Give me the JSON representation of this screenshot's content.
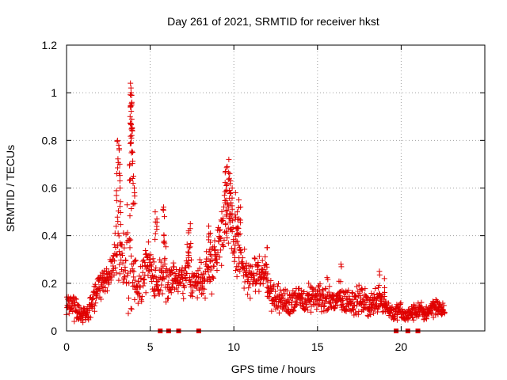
{
  "chart_data": {
    "type": "scatter",
    "title": "Day 261 of 2021, SRMTID for receiver hkst",
    "xlabel": "GPS time / hours",
    "ylabel": "SRMTID / TECUs",
    "xlim": [
      0,
      25
    ],
    "ylim": [
      0,
      1.2
    ],
    "x_ticks": [
      0,
      5,
      10,
      15,
      20
    ],
    "x_tick_labels": [
      "0",
      "5",
      "10",
      "15",
      "20"
    ],
    "y_ticks": [
      0,
      0.2,
      0.4,
      0.6,
      0.8,
      1,
      1.2
    ],
    "y_tick_labels": [
      "0",
      "0.2",
      "0.4",
      "0.6",
      "0.8",
      "1",
      "1.2"
    ],
    "grid": true,
    "marker": "+",
    "color": "#e00000",
    "series_name": "SRMTID",
    "profile": [
      [
        0.0,
        0.12,
        0.04
      ],
      [
        0.3,
        0.11,
        0.04
      ],
      [
        0.6,
        0.1,
        0.05
      ],
      [
        0.8,
        0.07,
        0.03
      ],
      [
        1.0,
        0.06,
        0.03
      ],
      [
        1.3,
        0.08,
        0.04
      ],
      [
        1.6,
        0.12,
        0.05
      ],
      [
        1.9,
        0.19,
        0.04
      ],
      [
        2.2,
        0.2,
        0.05
      ],
      [
        2.5,
        0.24,
        0.06
      ],
      [
        2.8,
        0.27,
        0.07
      ],
      [
        3.0,
        0.35,
        0.2
      ],
      [
        3.2,
        0.3,
        0.15
      ],
      [
        3.5,
        0.28,
        0.1
      ],
      [
        3.8,
        0.35,
        0.3
      ],
      [
        4.0,
        0.22,
        0.1
      ],
      [
        4.3,
        0.17,
        0.05
      ],
      [
        4.6,
        0.25,
        0.1
      ],
      [
        4.9,
        0.32,
        0.08
      ],
      [
        5.2,
        0.22,
        0.08
      ],
      [
        5.5,
        0.18,
        0.05
      ],
      [
        5.8,
        0.3,
        0.12
      ],
      [
        6.1,
        0.2,
        0.06
      ],
      [
        6.4,
        0.23,
        0.06
      ],
      [
        6.7,
        0.2,
        0.05
      ],
      [
        7.0,
        0.22,
        0.06
      ],
      [
        7.3,
        0.27,
        0.1
      ],
      [
        7.6,
        0.2,
        0.06
      ],
      [
        7.9,
        0.22,
        0.07
      ],
      [
        8.2,
        0.22,
        0.08
      ],
      [
        8.5,
        0.28,
        0.1
      ],
      [
        8.8,
        0.3,
        0.1
      ],
      [
        9.1,
        0.36,
        0.1
      ],
      [
        9.4,
        0.48,
        0.12
      ],
      [
        9.7,
        0.45,
        0.12
      ],
      [
        10.0,
        0.36,
        0.1
      ],
      [
        10.3,
        0.33,
        0.1
      ],
      [
        10.6,
        0.25,
        0.08
      ],
      [
        10.9,
        0.22,
        0.07
      ],
      [
        11.2,
        0.22,
        0.07
      ],
      [
        11.5,
        0.24,
        0.07
      ],
      [
        11.8,
        0.26,
        0.07
      ],
      [
        12.1,
        0.17,
        0.05
      ],
      [
        12.4,
        0.14,
        0.05
      ],
      [
        12.7,
        0.13,
        0.05
      ],
      [
        13.0,
        0.12,
        0.05
      ],
      [
        13.3,
        0.12,
        0.05
      ],
      [
        13.6,
        0.14,
        0.06
      ],
      [
        13.9,
        0.13,
        0.05
      ],
      [
        14.2,
        0.12,
        0.05
      ],
      [
        14.5,
        0.14,
        0.05
      ],
      [
        14.8,
        0.13,
        0.05
      ],
      [
        15.1,
        0.15,
        0.06
      ],
      [
        15.4,
        0.13,
        0.05
      ],
      [
        15.7,
        0.14,
        0.07
      ],
      [
        16.0,
        0.12,
        0.05
      ],
      [
        16.3,
        0.14,
        0.05
      ],
      [
        16.6,
        0.12,
        0.05
      ],
      [
        16.9,
        0.13,
        0.05
      ],
      [
        17.2,
        0.12,
        0.05
      ],
      [
        17.5,
        0.13,
        0.05
      ],
      [
        17.8,
        0.12,
        0.05
      ],
      [
        18.1,
        0.11,
        0.05
      ],
      [
        18.4,
        0.12,
        0.05
      ],
      [
        18.7,
        0.15,
        0.06
      ],
      [
        19.0,
        0.11,
        0.04
      ],
      [
        19.3,
        0.09,
        0.03
      ],
      [
        19.6,
        0.07,
        0.03
      ],
      [
        19.9,
        0.09,
        0.03
      ],
      [
        20.2,
        0.06,
        0.03
      ],
      [
        20.5,
        0.07,
        0.03
      ],
      [
        20.8,
        0.08,
        0.03
      ],
      [
        21.1,
        0.09,
        0.03
      ],
      [
        21.4,
        0.07,
        0.03
      ],
      [
        21.7,
        0.09,
        0.03
      ],
      [
        22.0,
        0.11,
        0.04
      ],
      [
        22.3,
        0.09,
        0.03
      ],
      [
        22.6,
        0.09,
        0.03
      ]
    ],
    "spikes": [
      [
        3.05,
        0.8
      ],
      [
        3.12,
        0.78
      ],
      [
        3.0,
        0.66
      ],
      [
        3.18,
        0.7
      ],
      [
        3.2,
        0.6
      ],
      [
        3.82,
        1.04
      ],
      [
        3.85,
        1.02
      ],
      [
        3.88,
        0.99
      ],
      [
        3.9,
        0.96
      ],
      [
        3.8,
        0.9
      ],
      [
        3.85,
        0.87
      ],
      [
        3.92,
        0.85
      ],
      [
        3.88,
        0.81
      ],
      [
        3.95,
        0.75
      ],
      [
        3.78,
        0.7
      ],
      [
        4.0,
        0.65
      ],
      [
        4.05,
        0.6
      ],
      [
        9.7,
        0.72
      ],
      [
        9.6,
        0.69
      ],
      [
        9.5,
        0.67
      ],
      [
        9.75,
        0.66
      ],
      [
        9.8,
        0.63
      ],
      [
        9.55,
        0.61
      ],
      [
        9.9,
        0.6
      ],
      [
        10.1,
        0.58
      ],
      [
        10.3,
        0.55
      ],
      [
        10.4,
        0.52
      ],
      [
        10.2,
        0.5
      ],
      [
        5.8,
        0.52
      ],
      [
        5.85,
        0.48
      ],
      [
        5.3,
        0.5
      ],
      [
        5.4,
        0.47
      ],
      [
        7.4,
        0.45
      ],
      [
        7.3,
        0.42
      ],
      [
        8.5,
        0.44
      ],
      [
        8.6,
        0.41
      ],
      [
        12.0,
        0.35
      ],
      [
        16.4,
        0.28
      ],
      [
        18.7,
        0.25
      ],
      [
        19.0,
        0.22
      ]
    ],
    "gaps": [
      5.6,
      6.1,
      6.7,
      7.9,
      19.7,
      20.4,
      21.0
    ]
  }
}
